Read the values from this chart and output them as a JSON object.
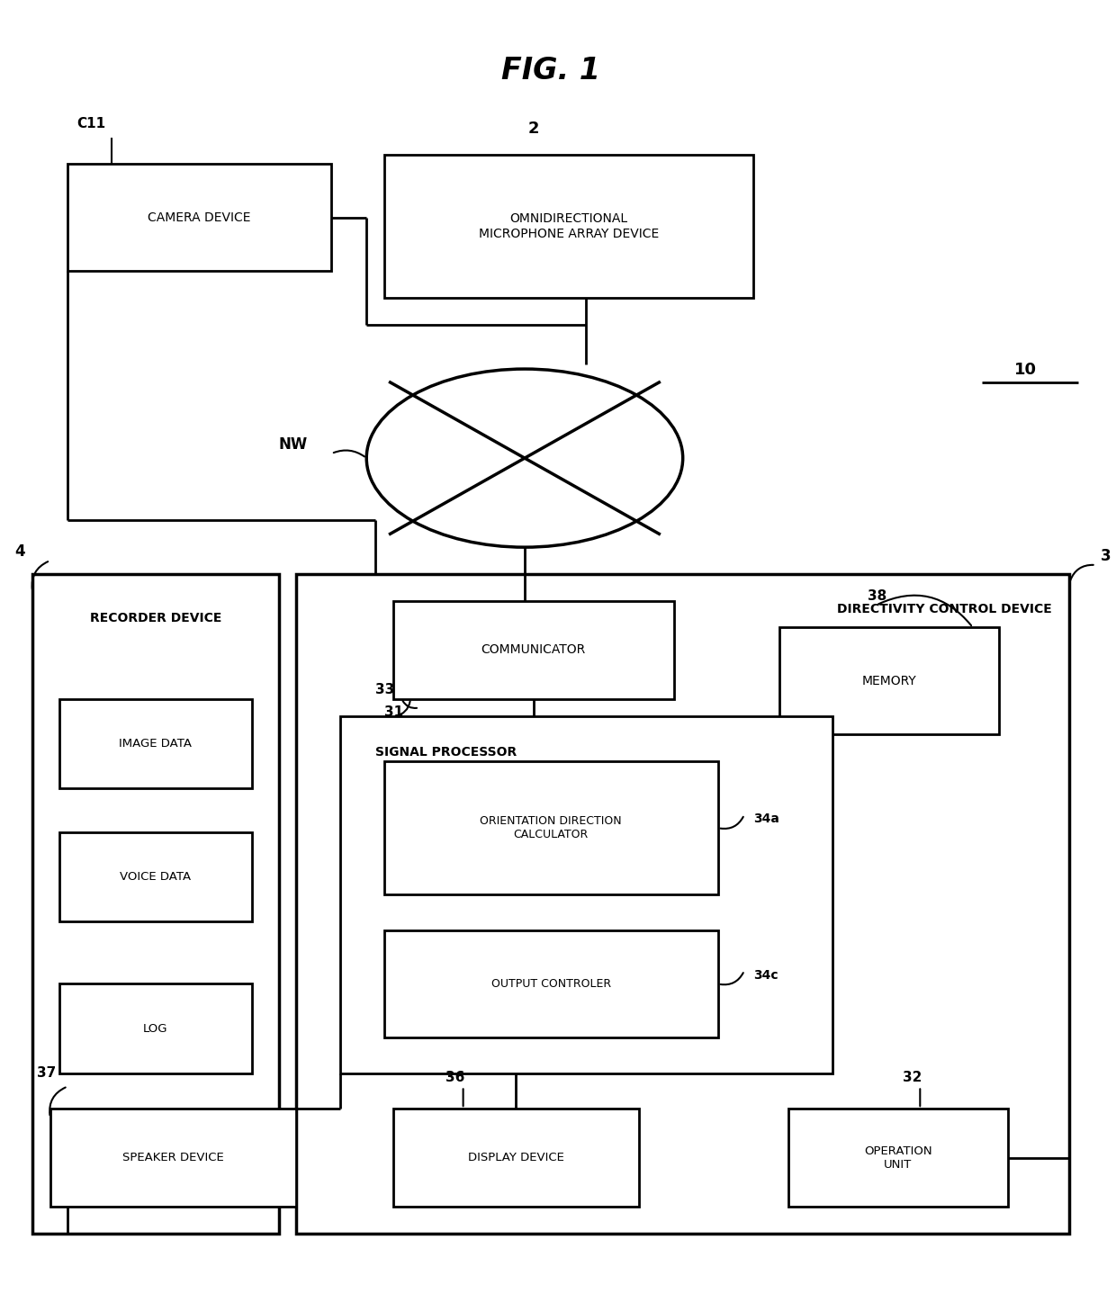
{
  "fig_title": "FIG. 1",
  "bg_color": "#ffffff",
  "line_color": "#000000",
  "fig_width": 12.4,
  "fig_height": 14.57,
  "label_C11": "C11",
  "label_camera": "CAMERA DEVICE",
  "label_2": "2",
  "label_mic": "OMNIDIRECTIONAL\nMICROPHONE ARRAY DEVICE",
  "label_NW": "NW",
  "label_10": "10",
  "label_4": "4",
  "label_recorder": "RECORDER DEVICE",
  "label_image_data": "IMAGE DATA",
  "label_voice_data": "VOICE DATA",
  "label_log": "LOG",
  "label_3": "3",
  "label_directivity": "DIRECTIVITY CONTROL DEVICE",
  "label_31": "31",
  "label_communicator": "COMMUNICATOR",
  "label_38": "38",
  "label_memory": "MEMORY",
  "label_33": "33",
  "label_signal_proc": "SIGNAL PROCESSOR",
  "label_34a": "34a",
  "label_orient_calc": "ORIENTATION DIRECTION\nCALCULATOR",
  "label_34c": "34c",
  "label_output_ctrl": "OUTPUT CONTROLER",
  "label_37": "37",
  "label_speaker": "SPEAKER DEVICE",
  "label_36": "36",
  "label_display": "DISPLAY DEVICE",
  "label_32": "32",
  "label_operation": "OPERATION\nUNIT"
}
